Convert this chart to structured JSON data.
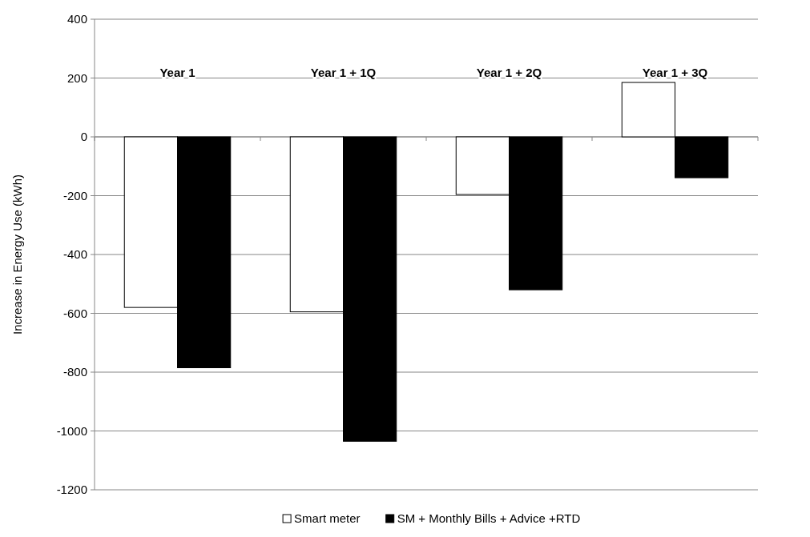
{
  "chart_data": {
    "type": "bar",
    "ylabel": "Increase in Energy Use (kWh)",
    "categories": [
      "Year 1",
      "Year 1 + 1Q",
      "Year 1 + 2Q",
      "Year 1 + 3Q"
    ],
    "series": [
      {
        "name": "Smart meter",
        "color": "#ffffff",
        "values": [
          -580,
          -595,
          -196,
          185
        ]
      },
      {
        "name": "SM + Monthly Bills + Advice +RTD",
        "color": "#000000",
        "values": [
          -785,
          -1035,
          -520,
          -139
        ]
      }
    ],
    "ylim": [
      -1200,
      400
    ],
    "yticks": [
      -1200,
      -1000,
      -800,
      -600,
      -400,
      -200,
      0,
      200,
      400
    ],
    "grid": "y",
    "legend": "bottom"
  }
}
